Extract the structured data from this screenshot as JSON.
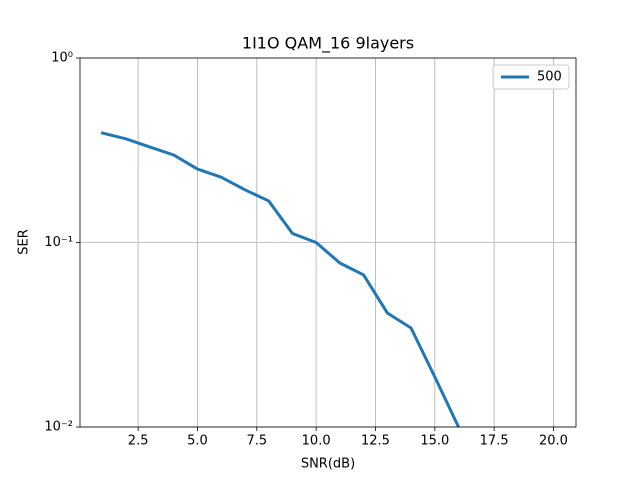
{
  "chart_data": {
    "type": "line",
    "title": "1I1O QAM_16 9layers",
    "x_label": "SNR(dB)",
    "y_label": "SER",
    "x": [
      1,
      2,
      3,
      4,
      5,
      6,
      7,
      8,
      9,
      10,
      11,
      12,
      13,
      14,
      15,
      16,
      17,
      18,
      19,
      20
    ],
    "series": [
      {
        "name": "500",
        "color": "#1f77b4",
        "values": [
          0.392,
          0.364,
          0.329,
          0.298,
          0.25,
          0.226,
          0.193,
          0.168,
          0.112,
          0.1,
          0.0774,
          0.0667,
          0.0415,
          0.0344,
          0.0187,
          0.01,
          null,
          null,
          null,
          null
        ]
      }
    ],
    "xlim": [
      0.05,
      20.95
    ],
    "xticks": [
      2.5,
      {
        "value": 5,
        "label": "5.0"
      },
      7.5,
      {
        "value": 10,
        "label": "10.0"
      },
      12.5,
      {
        "value": 15,
        "label": "15.0"
      },
      17.5,
      {
        "value": 20,
        "label": "20.0"
      }
    ],
    "ylim": [
      0.01,
      1
    ],
    "yticks": [
      {
        "value": 0.01,
        "label": "10⁻²"
      },
      {
        "value": 0.1,
        "label": "10⁻¹"
      },
      {
        "value": 1,
        "label": "10⁰"
      }
    ],
    "y_scale": "log",
    "grid": true,
    "legend": "upper right"
  }
}
